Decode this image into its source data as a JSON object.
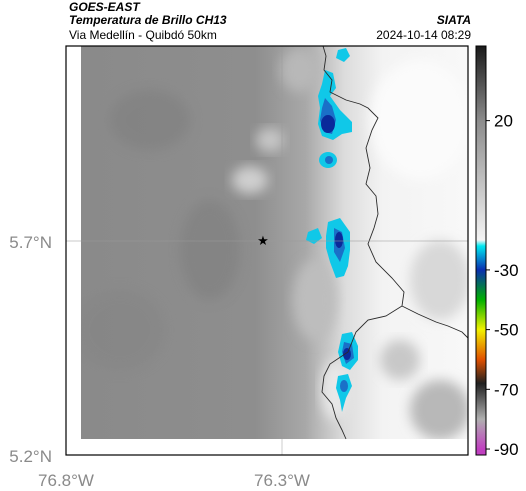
{
  "header": {
    "satellite": "GOES-EAST",
    "product": "Temperatura de Brillo CH13",
    "region": "Via Medellín - Quibdó 50km",
    "agency": "SIATA",
    "timestamp": "2024-10-14 08:29"
  },
  "map": {
    "lat_ticks": [
      "5.7°N",
      "5.2°N"
    ],
    "lon_ticks": [
      "76.8°W",
      "76.3°W"
    ],
    "marker": "star-icon"
  },
  "colorbar": {
    "tick_labels": [
      "20",
      "-30",
      "-50",
      "-70",
      "-90"
    ],
    "stops": [
      {
        "value": 45,
        "color": "#1a1a1a"
      },
      {
        "value": 20,
        "color": "#8c8c8c"
      },
      {
        "value": -20,
        "color": "#f4f4f4"
      },
      {
        "value": -22,
        "color": "#00e8f0"
      },
      {
        "value": -30,
        "color": "#0a2fb0"
      },
      {
        "value": -40,
        "color": "#00b000"
      },
      {
        "value": -50,
        "color": "#f2f200"
      },
      {
        "value": -60,
        "color": "#e05000"
      },
      {
        "value": -68,
        "color": "#202020"
      },
      {
        "value": -80,
        "color": "#b0b0b0"
      },
      {
        "value": -90,
        "color": "#c040c0"
      }
    ]
  }
}
